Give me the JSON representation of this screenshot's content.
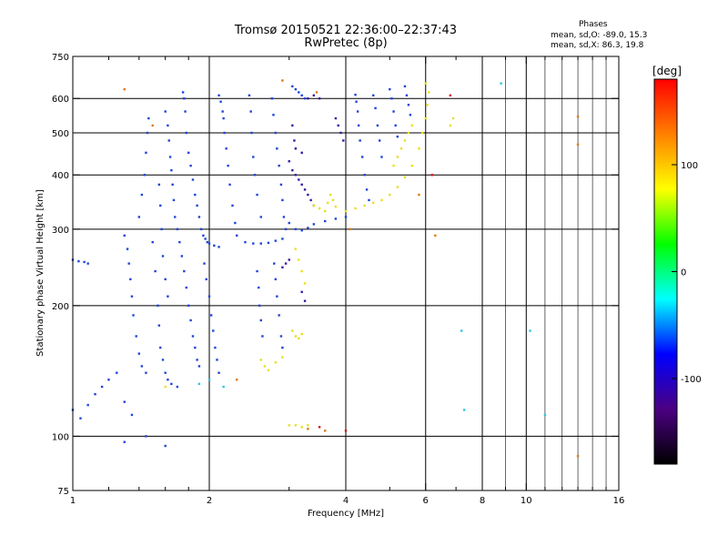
{
  "header": {
    "title_line1": "Tromsø 20150521 22:36:00–22:37:43",
    "title_line2": "RwPretec (8p)"
  },
  "stats": {
    "heading": "Phases",
    "line_o": "mean, sd,O: -89.0, 15.3",
    "line_x": "mean, sd,X: 86.3, 19.8"
  },
  "chart_data": {
    "type": "scatter",
    "xlabel": "Frequency [MHz]",
    "ylabel": "Stationary phase Virtual Height [km]",
    "x_scale": "log",
    "y_scale": "log",
    "xlim": [
      1,
      16
    ],
    "ylim": [
      75,
      750
    ],
    "x_ticks": [
      1,
      2,
      4,
      6,
      8,
      10,
      16
    ],
    "x_tick_labels": [
      "1",
      "2",
      "4",
      "6",
      "8",
      "10",
      "16"
    ],
    "x_minor_ticks": [
      1.2,
      1.4,
      1.6,
      1.8,
      3,
      5,
      7,
      9,
      11,
      12,
      13,
      14,
      15
    ],
    "y_ticks": [
      75,
      100,
      200,
      300,
      400,
      500,
      600,
      750
    ],
    "y_tick_labels": [
      "75",
      "100",
      "200",
      "300",
      "400",
      "500",
      "600",
      "750"
    ],
    "grid_x": [
      2,
      4,
      8
    ],
    "grid_y": [
      100,
      200,
      300,
      400,
      500,
      600
    ],
    "extra_vlines": [
      6,
      10
    ],
    "colorbar": {
      "label": "[deg]",
      "range": [
        -180,
        180
      ],
      "ticks": [
        100,
        0,
        -100
      ],
      "tick_labels": [
        "100",
        "0",
        "-100"
      ],
      "colors": [
        "#000000",
        "#4b0082",
        "#0000ff",
        "#00ffff",
        "#00ff00",
        "#ffff00",
        "#ff8000",
        "#ff0000"
      ]
    },
    "series": [
      {
        "color": "#1e46d8",
        "points": [
          [
            1.0,
            255
          ],
          [
            1.03,
            253
          ],
          [
            1.06,
            252
          ],
          [
            1.08,
            250
          ],
          [
            1.0,
            115
          ],
          [
            1.04,
            110
          ],
          [
            1.08,
            118
          ],
          [
            1.12,
            125
          ],
          [
            1.16,
            130
          ],
          [
            1.2,
            135
          ],
          [
            1.25,
            140
          ],
          [
            1.3,
            120
          ],
          [
            1.35,
            112
          ],
          [
            1.3,
            290
          ],
          [
            1.32,
            270
          ],
          [
            1.33,
            250
          ],
          [
            1.34,
            230
          ],
          [
            1.35,
            210
          ],
          [
            1.36,
            190
          ],
          [
            1.38,
            170
          ],
          [
            1.4,
            155
          ],
          [
            1.42,
            145
          ],
          [
            1.45,
            140
          ],
          [
            1.4,
            320
          ],
          [
            1.42,
            360
          ],
          [
            1.44,
            400
          ],
          [
            1.45,
            450
          ],
          [
            1.46,
            500
          ],
          [
            1.47,
            540
          ],
          [
            1.5,
            280
          ],
          [
            1.52,
            240
          ],
          [
            1.54,
            200
          ],
          [
            1.55,
            180
          ],
          [
            1.56,
            160
          ],
          [
            1.58,
            150
          ],
          [
            1.6,
            140
          ],
          [
            1.62,
            135
          ],
          [
            1.65,
            132
          ],
          [
            1.7,
            130
          ],
          [
            1.55,
            380
          ],
          [
            1.56,
            340
          ],
          [
            1.57,
            300
          ],
          [
            1.58,
            260
          ],
          [
            1.6,
            230
          ],
          [
            1.62,
            210
          ],
          [
            1.6,
            560
          ],
          [
            1.62,
            520
          ],
          [
            1.63,
            480
          ],
          [
            1.64,
            440
          ],
          [
            1.65,
            410
          ],
          [
            1.66,
            380
          ],
          [
            1.67,
            350
          ],
          [
            1.68,
            320
          ],
          [
            1.7,
            300
          ],
          [
            1.72,
            280
          ],
          [
            1.74,
            260
          ],
          [
            1.76,
            240
          ],
          [
            1.78,
            220
          ],
          [
            1.8,
            200
          ],
          [
            1.82,
            185
          ],
          [
            1.84,
            170
          ],
          [
            1.86,
            160
          ],
          [
            1.88,
            150
          ],
          [
            1.9,
            145
          ],
          [
            1.75,
            620
          ],
          [
            1.76,
            600
          ],
          [
            1.77,
            560
          ],
          [
            1.78,
            500
          ],
          [
            1.8,
            450
          ],
          [
            1.82,
            420
          ],
          [
            1.84,
            390
          ],
          [
            1.86,
            360
          ],
          [
            1.88,
            340
          ],
          [
            1.9,
            320
          ],
          [
            1.92,
            300
          ],
          [
            1.94,
            290
          ],
          [
            1.96,
            285
          ],
          [
            1.98,
            280
          ],
          [
            2.0,
            278
          ],
          [
            2.05,
            275
          ],
          [
            2.1,
            273
          ],
          [
            1.95,
            250
          ],
          [
            1.97,
            230
          ],
          [
            2.0,
            210
          ],
          [
            2.02,
            190
          ],
          [
            2.04,
            175
          ],
          [
            2.06,
            160
          ],
          [
            2.08,
            150
          ],
          [
            2.1,
            140
          ],
          [
            2.1,
            610
          ],
          [
            2.12,
            590
          ],
          [
            2.14,
            560
          ],
          [
            2.15,
            540
          ],
          [
            2.16,
            500
          ],
          [
            2.18,
            460
          ],
          [
            2.2,
            420
          ],
          [
            2.22,
            380
          ],
          [
            2.25,
            340
          ],
          [
            2.28,
            310
          ],
          [
            2.3,
            290
          ],
          [
            2.4,
            280
          ],
          [
            2.5,
            278
          ],
          [
            2.6,
            278
          ],
          [
            2.7,
            279
          ],
          [
            2.8,
            282
          ],
          [
            2.9,
            285
          ],
          [
            2.45,
            610
          ],
          [
            2.47,
            560
          ],
          [
            2.48,
            500
          ],
          [
            2.5,
            440
          ],
          [
            2.52,
            400
          ],
          [
            2.55,
            360
          ],
          [
            2.6,
            320
          ],
          [
            2.55,
            240
          ],
          [
            2.57,
            220
          ],
          [
            2.58,
            200
          ],
          [
            2.6,
            185
          ],
          [
            2.62,
            170
          ],
          [
            2.75,
            600
          ],
          [
            2.77,
            550
          ],
          [
            2.8,
            500
          ],
          [
            2.82,
            460
          ],
          [
            2.85,
            420
          ],
          [
            2.88,
            380
          ],
          [
            2.9,
            350
          ],
          [
            2.92,
            320
          ],
          [
            2.95,
            300
          ],
          [
            2.78,
            250
          ],
          [
            2.8,
            230
          ],
          [
            2.82,
            210
          ],
          [
            2.85,
            190
          ],
          [
            2.88,
            170
          ],
          [
            2.9,
            160
          ],
          [
            3.05,
            640
          ],
          [
            3.1,
            630
          ],
          [
            3.15,
            620
          ],
          [
            3.2,
            610
          ],
          [
            3.25,
            600
          ],
          [
            3.0,
            310
          ],
          [
            3.1,
            300
          ],
          [
            3.2,
            298
          ],
          [
            3.3,
            302
          ],
          [
            3.4,
            308
          ],
          [
            3.6,
            313
          ],
          [
            3.8,
            317
          ],
          [
            4.0,
            320
          ],
          [
            4.2,
            612
          ],
          [
            4.22,
            590
          ],
          [
            4.25,
            560
          ],
          [
            4.27,
            520
          ],
          [
            4.3,
            480
          ],
          [
            4.35,
            440
          ],
          [
            4.4,
            400
          ],
          [
            4.45,
            370
          ],
          [
            4.5,
            350
          ],
          [
            4.6,
            610
          ],
          [
            4.65,
            570
          ],
          [
            4.7,
            520
          ],
          [
            4.75,
            480
          ],
          [
            4.8,
            440
          ],
          [
            5.0,
            630
          ],
          [
            5.05,
            600
          ],
          [
            5.1,
            560
          ],
          [
            5.15,
            520
          ],
          [
            5.2,
            490
          ],
          [
            5.4,
            640
          ],
          [
            5.45,
            610
          ],
          [
            5.5,
            580
          ],
          [
            5.55,
            550
          ],
          [
            1.45,
            100
          ],
          [
            1.6,
            95
          ],
          [
            1.3,
            97
          ]
        ]
      },
      {
        "color": "#3a1aa0",
        "points": [
          [
            3.0,
            430
          ],
          [
            3.05,
            410
          ],
          [
            3.1,
            400
          ],
          [
            3.15,
            390
          ],
          [
            3.2,
            380
          ],
          [
            3.25,
            370
          ],
          [
            3.3,
            360
          ],
          [
            3.35,
            350
          ],
          [
            3.4,
            340
          ],
          [
            3.05,
            520
          ],
          [
            3.08,
            480
          ],
          [
            3.1,
            460
          ],
          [
            3.2,
            450
          ],
          [
            3.3,
            600
          ],
          [
            3.4,
            610
          ],
          [
            3.5,
            600
          ],
          [
            3.8,
            540
          ],
          [
            3.85,
            520
          ],
          [
            3.9,
            500
          ],
          [
            3.95,
            480
          ],
          [
            3.2,
            215
          ],
          [
            3.25,
            205
          ],
          [
            2.9,
            245
          ],
          [
            2.95,
            250
          ],
          [
            3.0,
            255
          ]
        ]
      },
      {
        "color": "#e8e020",
        "points": [
          [
            3.4,
            340
          ],
          [
            3.5,
            335
          ],
          [
            3.6,
            330
          ],
          [
            3.65,
            345
          ],
          [
            3.7,
            360
          ],
          [
            3.75,
            350
          ],
          [
            3.8,
            338
          ],
          [
            4.0,
            330
          ],
          [
            4.2,
            335
          ],
          [
            4.4,
            340
          ],
          [
            4.6,
            345
          ],
          [
            4.8,
            350
          ],
          [
            5.0,
            360
          ],
          [
            5.2,
            375
          ],
          [
            5.4,
            395
          ],
          [
            5.6,
            420
          ],
          [
            5.8,
            460
          ],
          [
            5.9,
            500
          ],
          [
            6.0,
            540
          ],
          [
            6.05,
            580
          ],
          [
            6.1,
            620
          ],
          [
            6.0,
            650
          ],
          [
            5.1,
            420
          ],
          [
            5.2,
            440
          ],
          [
            5.3,
            460
          ],
          [
            5.4,
            480
          ],
          [
            5.5,
            500
          ],
          [
            5.6,
            520
          ],
          [
            6.8,
            520
          ],
          [
            6.9,
            540
          ],
          [
            3.1,
            270
          ],
          [
            3.15,
            255
          ],
          [
            3.2,
            240
          ],
          [
            3.25,
            225
          ],
          [
            3.05,
            175
          ],
          [
            3.1,
            170
          ],
          [
            3.15,
            168
          ],
          [
            3.2,
            172
          ],
          [
            2.6,
            150
          ],
          [
            2.65,
            145
          ],
          [
            2.7,
            142
          ],
          [
            2.8,
            148
          ],
          [
            2.9,
            152
          ],
          [
            3.0,
            106
          ],
          [
            3.1,
            106
          ],
          [
            3.2,
            105
          ],
          [
            3.3,
            106
          ],
          [
            1.6,
            130
          ]
        ]
      },
      {
        "color": "#28c8e0",
        "points": [
          [
            7.2,
            175
          ],
          [
            7.3,
            115
          ],
          [
            8.8,
            650
          ],
          [
            10.2,
            175
          ],
          [
            11,
            112
          ],
          [
            2.15,
            130
          ],
          [
            2.0,
            135
          ],
          [
            1.9,
            132
          ]
        ]
      },
      {
        "color": "#e07a10",
        "points": [
          [
            1.3,
            630
          ],
          [
            1.5,
            520
          ],
          [
            2.9,
            660
          ],
          [
            3.45,
            620
          ],
          [
            4.1,
            300
          ],
          [
            6.3,
            290
          ],
          [
            5.8,
            360
          ],
          [
            13,
            545
          ],
          [
            13,
            470
          ],
          [
            13,
            90
          ],
          [
            2.3,
            135
          ],
          [
            3.3,
            104
          ],
          [
            3.6,
            103
          ]
        ]
      },
      {
        "color": "#d01818",
        "points": [
          [
            6.2,
            400
          ],
          [
            4.0,
            103
          ],
          [
            3.5,
            105
          ],
          [
            6.8,
            610
          ]
        ]
      }
    ]
  }
}
